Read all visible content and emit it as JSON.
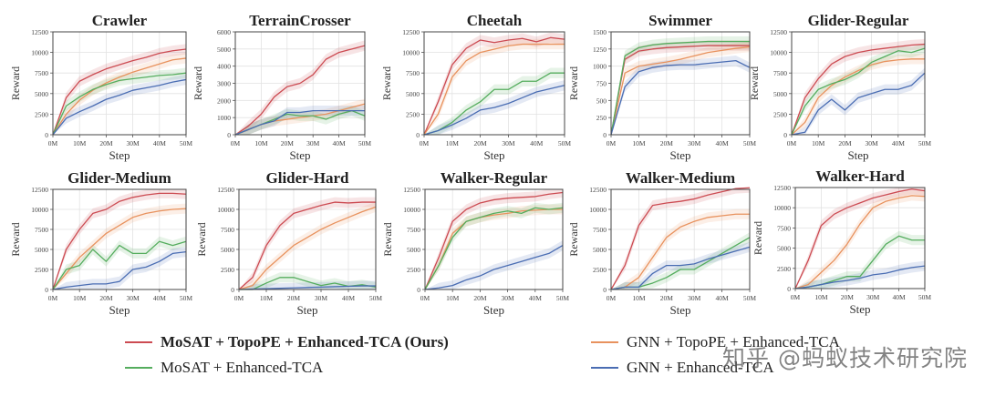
{
  "chart_data": [
    {
      "type": "line",
      "title": "Crawler",
      "xlabel": "Step",
      "ylabel": "Reward",
      "ylim": [
        0,
        12500
      ],
      "yticks": [
        "0",
        "2500",
        "5000",
        "7500",
        "10000",
        "12500"
      ],
      "xticks": [
        "0M",
        "10M",
        "20M",
        "30M",
        "40M",
        "50M"
      ],
      "grid": true,
      "x": [
        0,
        5,
        10,
        15,
        20,
        25,
        30,
        35,
        40,
        45,
        50
      ],
      "series": [
        {
          "name": "MoSAT + TopoPE + Enhanced-TCA (Ours)",
          "values": [
            0,
            4500,
            6500,
            7300,
            8000,
            8500,
            9000,
            9400,
            9900,
            10200,
            10400
          ]
        },
        {
          "name": "GNN + TopoPE + Enhanced-TCA",
          "values": [
            0,
            2500,
            4200,
            5400,
            6300,
            7000,
            7600,
            8100,
            8600,
            9100,
            9300
          ]
        },
        {
          "name": "MoSAT + Enhanced-TCA",
          "values": [
            0,
            3500,
            4600,
            5500,
            6100,
            6600,
            6800,
            7000,
            7200,
            7300,
            7500
          ]
        },
        {
          "name": "GNN + Enhanced-TCA",
          "values": [
            0,
            2000,
            2800,
            3500,
            4300,
            4800,
            5400,
            5700,
            6000,
            6400,
            6700
          ]
        }
      ]
    },
    {
      "type": "line",
      "title": "TerrainCrosser",
      "xlabel": "Step",
      "ylabel": "Reward",
      "ylim": [
        0,
        6000
      ],
      "yticks": [
        "0",
        "1000",
        "2000",
        "3000",
        "4000",
        "5000",
        "6000"
      ],
      "xticks": [
        "0M",
        "10M",
        "20M",
        "30M",
        "40M",
        "50M"
      ],
      "grid": true,
      "x": [
        0,
        5,
        10,
        15,
        20,
        25,
        30,
        35,
        40,
        45,
        50
      ],
      "series": [
        {
          "name": "MoSAT + TopoPE + Enhanced-TCA (Ours)",
          "values": [
            0,
            500,
            1200,
            2200,
            2800,
            3000,
            3500,
            4400,
            4800,
            5000,
            5200
          ]
        },
        {
          "name": "GNN + TopoPE + Enhanced-TCA",
          "values": [
            0,
            300,
            600,
            800,
            900,
            1000,
            1100,
            1200,
            1400,
            1600,
            1800
          ]
        },
        {
          "name": "MoSAT + Enhanced-TCA",
          "values": [
            0,
            300,
            600,
            900,
            1200,
            1100,
            1100,
            900,
            1200,
            1400,
            1100
          ]
        },
        {
          "name": "GNN + Enhanced-TCA",
          "values": [
            0,
            300,
            600,
            800,
            1300,
            1300,
            1400,
            1400,
            1400,
            1400,
            1400
          ]
        }
      ]
    },
    {
      "type": "line",
      "title": "Cheetah",
      "xlabel": "Step",
      "ylabel": "Reward",
      "ylim": [
        0,
        12500
      ],
      "yticks": [
        "0",
        "2500",
        "5000",
        "7500",
        "10000",
        "12500"
      ],
      "xticks": [
        "0M",
        "10M",
        "20M",
        "30M",
        "40M",
        "50M"
      ],
      "grid": true,
      "x": [
        0,
        5,
        10,
        15,
        20,
        25,
        30,
        35,
        40,
        45,
        50
      ],
      "series": [
        {
          "name": "MoSAT + TopoPE + Enhanced-TCA (Ours)",
          "values": [
            0,
            4000,
            8500,
            10500,
            11500,
            11200,
            11500,
            11700,
            11300,
            11800,
            11600
          ]
        },
        {
          "name": "GNN + TopoPE + Enhanced-TCA",
          "values": [
            0,
            2500,
            7000,
            9000,
            10000,
            10400,
            10800,
            11000,
            11000,
            11000,
            11000
          ]
        },
        {
          "name": "MoSAT + Enhanced-TCA",
          "values": [
            0,
            500,
            1500,
            3000,
            4000,
            5500,
            5500,
            6500,
            6500,
            7500,
            7500
          ]
        },
        {
          "name": "GNN + Enhanced-TCA",
          "values": [
            0,
            500,
            1200,
            2000,
            3000,
            3300,
            3800,
            4500,
            5200,
            5600,
            6000
          ]
        }
      ]
    },
    {
      "type": "line",
      "title": "Swimmer",
      "xlabel": "Step",
      "ylabel": "Reward",
      "ylim": [
        0,
        1500
      ],
      "yticks": [
        "0",
        "250",
        "500",
        "750",
        "1000",
        "1250",
        "1500"
      ],
      "xticks": [
        "0M",
        "10M",
        "20M",
        "30M",
        "40M",
        "50M"
      ],
      "grid": true,
      "x": [
        0,
        5,
        10,
        15,
        20,
        25,
        30,
        35,
        40,
        45,
        50
      ],
      "series": [
        {
          "name": "MoSAT + TopoPE + Enhanced-TCA (Ours)",
          "values": [
            0,
            1100,
            1220,
            1250,
            1270,
            1280,
            1290,
            1300,
            1300,
            1300,
            1300
          ]
        },
        {
          "name": "GNN + TopoPE + Enhanced-TCA",
          "values": [
            0,
            900,
            1000,
            1030,
            1060,
            1100,
            1150,
            1200,
            1230,
            1260,
            1280
          ]
        },
        {
          "name": "MoSAT + Enhanced-TCA",
          "values": [
            0,
            1150,
            1270,
            1310,
            1330,
            1340,
            1350,
            1360,
            1360,
            1360,
            1360
          ]
        },
        {
          "name": "GNN + Enhanced-TCA",
          "values": [
            0,
            700,
            920,
            980,
            1010,
            1020,
            1020,
            1040,
            1060,
            1080,
            980
          ]
        }
      ]
    },
    {
      "type": "line",
      "title": "Glider-Regular",
      "xlabel": "Step",
      "ylabel": "Reward",
      "ylim": [
        0,
        12500
      ],
      "yticks": [
        "0",
        "2500",
        "5000",
        "7500",
        "10000",
        "12500"
      ],
      "xticks": [
        "0M",
        "10M",
        "20M",
        "30M",
        "40M",
        "50M"
      ],
      "grid": true,
      "x": [
        0,
        5,
        10,
        15,
        20,
        25,
        30,
        35,
        40,
        45,
        50
      ],
      "series": [
        {
          "name": "MoSAT + TopoPE + Enhanced-TCA (Ours)",
          "values": [
            0,
            4500,
            6800,
            8600,
            9500,
            10000,
            10300,
            10500,
            10700,
            10900,
            11000
          ]
        },
        {
          "name": "GNN + TopoPE + Enhanced-TCA",
          "values": [
            0,
            1500,
            4500,
            6000,
            7000,
            7800,
            8500,
            8900,
            9100,
            9200,
            9200
          ]
        },
        {
          "name": "MoSAT + Enhanced-TCA",
          "values": [
            0,
            3500,
            5500,
            6200,
            6700,
            7500,
            8800,
            9500,
            10200,
            10000,
            10500
          ]
        },
        {
          "name": "GNN + Enhanced-TCA",
          "values": [
            0,
            300,
            3000,
            4300,
            3000,
            4500,
            5000,
            5500,
            5500,
            6000,
            7500
          ]
        }
      ]
    },
    {
      "type": "line",
      "title": "Glider-Medium",
      "xlabel": "Step",
      "ylabel": "Reward",
      "ylim": [
        0,
        12500
      ],
      "yticks": [
        "0",
        "2500",
        "5000",
        "7500",
        "10000",
        "12500"
      ],
      "xticks": [
        "0M",
        "10M",
        "20M",
        "30M",
        "40M",
        "50M"
      ],
      "grid": true,
      "x": [
        0,
        5,
        10,
        15,
        20,
        25,
        30,
        35,
        40,
        45,
        50
      ],
      "series": [
        {
          "name": "MoSAT + TopoPE + Enhanced-TCA (Ours)",
          "values": [
            0,
            5000,
            7500,
            9500,
            10000,
            11000,
            11500,
            11800,
            12000,
            12000,
            11900
          ]
        },
        {
          "name": "GNN + TopoPE + Enhanced-TCA",
          "values": [
            0,
            2000,
            4000,
            5500,
            7000,
            8000,
            9000,
            9500,
            9800,
            10000,
            10100
          ]
        },
        {
          "name": "MoSAT + Enhanced-TCA",
          "values": [
            0,
            2500,
            3000,
            5000,
            3500,
            5500,
            4500,
            4500,
            6000,
            5500,
            6000
          ]
        },
        {
          "name": "GNN + Enhanced-TCA",
          "values": [
            0,
            300,
            500,
            700,
            700,
            1000,
            2500,
            2800,
            3500,
            4500,
            4700
          ]
        }
      ]
    },
    {
      "type": "line",
      "title": "Glider-Hard",
      "xlabel": "Step",
      "ylabel": "Reward",
      "ylim": [
        0,
        12500
      ],
      "yticks": [
        "0",
        "2500",
        "5000",
        "7500",
        "10000",
        "12500"
      ],
      "xticks": [
        "0M",
        "10M",
        "20M",
        "30M",
        "40M",
        "50M"
      ],
      "grid": true,
      "x": [
        0,
        5,
        10,
        15,
        20,
        25,
        30,
        35,
        40,
        45,
        50
      ],
      "series": [
        {
          "name": "MoSAT + TopoPE + Enhanced-TCA (Ours)",
          "values": [
            0,
            1500,
            5500,
            8000,
            9500,
            10000,
            10500,
            10900,
            10800,
            10900,
            10900
          ]
        },
        {
          "name": "GNN + TopoPE + Enhanced-TCA",
          "values": [
            0,
            500,
            2500,
            4000,
            5500,
            6500,
            7500,
            8300,
            9000,
            9700,
            10300
          ]
        },
        {
          "name": "MoSAT + Enhanced-TCA",
          "values": [
            0,
            0,
            800,
            1500,
            1500,
            1000,
            500,
            800,
            400,
            600,
            300
          ]
        },
        {
          "name": "GNN + Enhanced-TCA",
          "values": [
            0,
            50,
            100,
            150,
            200,
            250,
            300,
            350,
            400,
            450,
            450
          ]
        }
      ]
    },
    {
      "type": "line",
      "title": "Walker-Regular",
      "xlabel": "Step",
      "ylabel": "Reward",
      "ylim": [
        0,
        12500
      ],
      "yticks": [
        "0",
        "2500",
        "5000",
        "7500",
        "10000",
        "12500"
      ],
      "xticks": [
        "0M",
        "10M",
        "20M",
        "30M",
        "40M",
        "50M"
      ],
      "grid": true,
      "x": [
        0,
        5,
        10,
        15,
        20,
        25,
        30,
        35,
        40,
        45,
        50
      ],
      "series": [
        {
          "name": "MoSAT + TopoPE + Enhanced-TCA (Ours)",
          "values": [
            0,
            4000,
            8500,
            10000,
            10800,
            11200,
            11400,
            11500,
            11600,
            11900,
            12100
          ]
        },
        {
          "name": "GNN + TopoPE + Enhanced-TCA",
          "values": [
            0,
            3000,
            7000,
            8500,
            9000,
            9300,
            9500,
            9800,
            9900,
            10000,
            10000
          ]
        },
        {
          "name": "MoSAT + Enhanced-TCA",
          "values": [
            0,
            3000,
            6500,
            8500,
            9000,
            9500,
            9800,
            9500,
            10200,
            10000,
            10200
          ]
        },
        {
          "name": "GNN + Enhanced-TCA",
          "values": [
            0,
            200,
            500,
            1200,
            1700,
            2500,
            3000,
            3500,
            4000,
            4500,
            5500
          ]
        }
      ]
    },
    {
      "type": "line",
      "title": "Walker-Medium",
      "xlabel": "Step",
      "ylabel": "Reward",
      "ylim": [
        0,
        12500
      ],
      "yticks": [
        "0",
        "2500",
        "5000",
        "7500",
        "10000",
        "12500"
      ],
      "xticks": [
        "0M",
        "10M",
        "20M",
        "30M",
        "40M",
        "50M"
      ],
      "grid": true,
      "x": [
        0,
        5,
        10,
        15,
        20,
        25,
        30,
        35,
        40,
        45,
        50
      ],
      "series": [
        {
          "name": "MoSAT + TopoPE + Enhanced-TCA (Ours)",
          "values": [
            0,
            3000,
            8000,
            10500,
            10800,
            11000,
            11300,
            11800,
            12200,
            12600,
            12700
          ]
        },
        {
          "name": "GNN + TopoPE + Enhanced-TCA",
          "values": [
            0,
            300,
            1500,
            4000,
            6500,
            7800,
            8500,
            9000,
            9200,
            9400,
            9400
          ]
        },
        {
          "name": "MoSAT + Enhanced-TCA",
          "values": [
            0,
            300,
            300,
            800,
            1500,
            2500,
            2500,
            3500,
            4500,
            5500,
            6500
          ]
        },
        {
          "name": "GNN + Enhanced-TCA",
          "values": [
            0,
            300,
            300,
            2000,
            3000,
            3000,
            3200,
            3800,
            4300,
            4800,
            5300
          ]
        }
      ]
    },
    {
      "type": "line",
      "title": "Walker-Hard",
      "xlabel": "Step",
      "ylabel": "Reward",
      "ylim": [
        0,
        12500
      ],
      "yticks": [
        "0",
        "2500",
        "5000",
        "7500",
        "10000",
        "12500"
      ],
      "xticks": [
        "0M",
        "10M",
        "20M",
        "30M",
        "40M",
        "50M"
      ],
      "grid": true,
      "x": [
        0,
        5,
        10,
        15,
        20,
        25,
        30,
        35,
        40,
        45,
        50
      ],
      "series": [
        {
          "name": "MoSAT + TopoPE + Enhanced-TCA (Ours)",
          "values": [
            0,
            3500,
            7800,
            9200,
            10000,
            10600,
            11200,
            11600,
            12000,
            12300,
            12100
          ]
        },
        {
          "name": "GNN + TopoPE + Enhanced-TCA",
          "values": [
            0,
            500,
            2000,
            3500,
            5500,
            8000,
            10000,
            10800,
            11200,
            11500,
            11400
          ]
        },
        {
          "name": "MoSAT + Enhanced-TCA",
          "values": [
            0,
            200,
            500,
            1000,
            1500,
            1500,
            3500,
            5500,
            6500,
            6000,
            6000
          ]
        },
        {
          "name": "GNN + Enhanced-TCA",
          "values": [
            0,
            200,
            500,
            800,
            1000,
            1300,
            1700,
            1900,
            2300,
            2600,
            2800
          ]
        }
      ]
    }
  ],
  "colors": {
    "MoSAT + TopoPE + Enhanced-TCA (Ours)": "#cc4b52",
    "GNN + TopoPE + Enhanced-TCA": "#e8925e",
    "MoSAT + Enhanced-TCA": "#55ad5e",
    "GNN + Enhanced-TCA": "#4a6db3"
  },
  "legend": {
    "position": "bottom",
    "items": [
      {
        "label": "MoSAT + TopoPE + Enhanced-TCA (Ours)",
        "color": "#cc4b52"
      },
      {
        "label": "GNN + TopoPE + Enhanced-TCA",
        "color": "#e8925e"
      },
      {
        "label": "MoSAT + Enhanced-TCA",
        "color": "#55ad5e"
      },
      {
        "label": "GNN + Enhanced-TCA",
        "color": "#4a6db3"
      }
    ]
  },
  "watermark": "知乎 @蚂蚁技术研究院"
}
